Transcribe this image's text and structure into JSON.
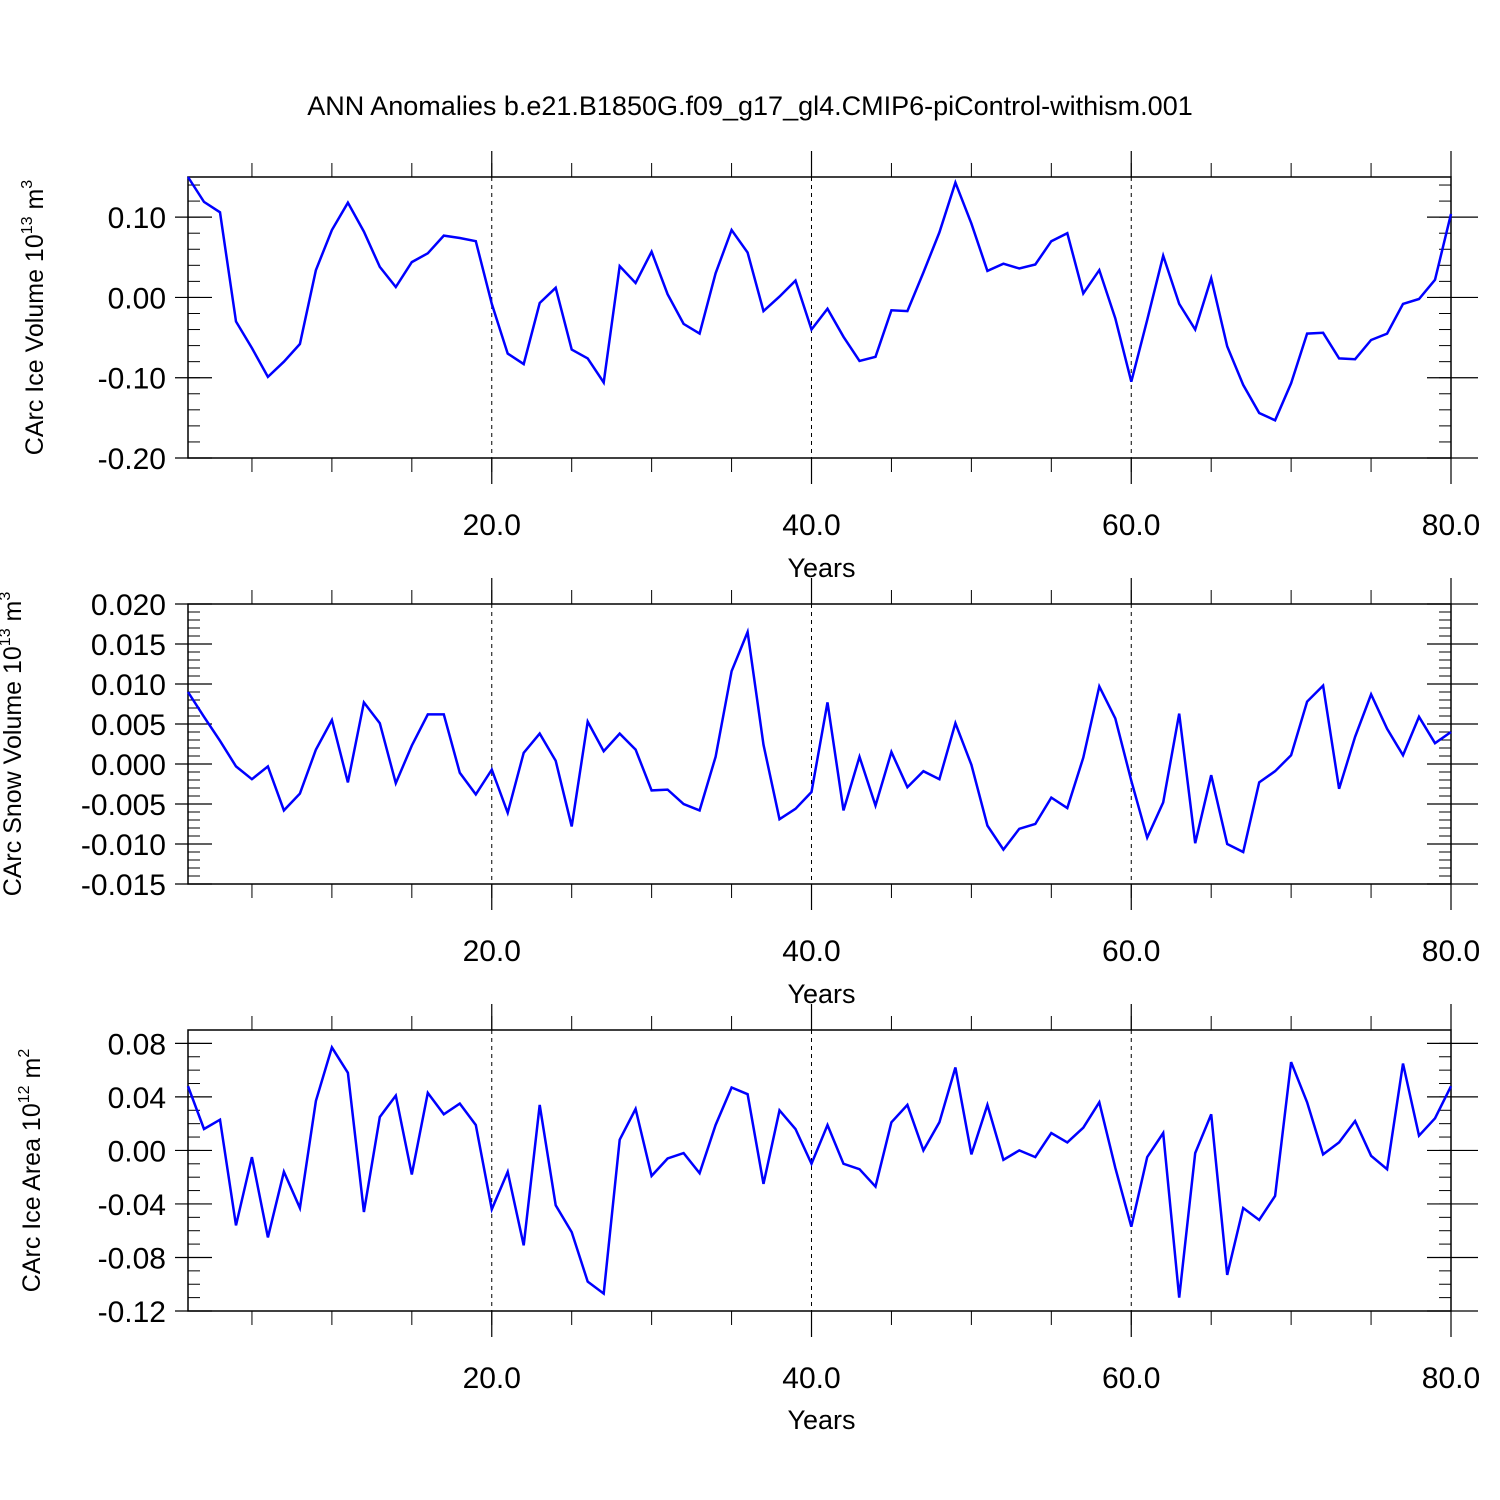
{
  "title": "ANN Anomalies b.e21.B1850G.f09_g17_gl4.CMIP6-piControl-withism.001",
  "colors": {
    "line": "#0000ff",
    "axes": "#000000",
    "grid": "#000000"
  },
  "chart_data": [
    {
      "type": "line",
      "ylabel": "CArc Ice Volume 10",
      "ylabel_exp": "13",
      "ylabel_unit": "m",
      "ylabel_unit_exp": "3",
      "xlabel": "Years",
      "xlim": [
        1,
        80
      ],
      "ylim": [
        -0.2,
        0.15
      ],
      "xticks": [
        20,
        40,
        60,
        80
      ],
      "xtick_labels": [
        "20.0",
        "40.0",
        "60.0",
        "80.0"
      ],
      "yticks": [
        -0.2,
        -0.1,
        0.0,
        0.1
      ],
      "ytick_labels": [
        "-0.20",
        "-0.10",
        "0.00",
        "0.10"
      ],
      "y_minor_step": 0.02,
      "x_minor_step": 5,
      "grid": "dashed vertical at x major ticks",
      "x": [
        1,
        2,
        3,
        4,
        5,
        6,
        7,
        8,
        9,
        10,
        11,
        12,
        13,
        14,
        15,
        16,
        17,
        18,
        19,
        20,
        21,
        22,
        23,
        24,
        25,
        26,
        27,
        28,
        29,
        30,
        31,
        32,
        33,
        34,
        35,
        36,
        37,
        38,
        39,
        40,
        41,
        42,
        43,
        44,
        45,
        46,
        47,
        48,
        49,
        50,
        51,
        52,
        53,
        54,
        55,
        56,
        57,
        58,
        59,
        60,
        61,
        62,
        63,
        64,
        65,
        66,
        67,
        68,
        69,
        70,
        71,
        72,
        73,
        74,
        75,
        76,
        77,
        78,
        79,
        80
      ],
      "values": [
        0.15,
        0.119,
        0.106,
        -0.03,
        -0.063,
        -0.099,
        -0.08,
        -0.058,
        0.034,
        0.084,
        0.118,
        0.082,
        0.038,
        0.013,
        0.044,
        0.055,
        0.077,
        0.074,
        0.07,
        -0.008,
        -0.07,
        -0.083,
        -0.007,
        0.012,
        -0.065,
        -0.076,
        -0.106,
        0.039,
        0.018,
        0.057,
        0.004,
        -0.033,
        -0.045,
        0.03,
        0.084,
        0.056,
        -0.017,
        0.001,
        0.021,
        -0.04,
        -0.014,
        -0.049,
        -0.079,
        -0.074,
        -0.016,
        -0.017,
        0.031,
        0.081,
        0.143,
        0.092,
        0.033,
        0.042,
        0.036,
        0.041,
        0.07,
        0.08,
        0.005,
        0.034,
        -0.026,
        -0.105,
        -0.028,
        0.052,
        -0.008,
        -0.04,
        0.024,
        -0.061,
        -0.109,
        -0.144,
        -0.153,
        -0.107,
        -0.045,
        -0.044,
        -0.076,
        -0.077,
        -0.053,
        -0.045,
        -0.008,
        -0.002,
        0.022,
        0.104
      ]
    },
    {
      "type": "line",
      "ylabel": "CArc Snow Volume 10",
      "ylabel_exp": "13",
      "ylabel_unit": "m",
      "ylabel_unit_exp": "3",
      "xlabel": "Years",
      "xlim": [
        1,
        80
      ],
      "ylim": [
        -0.015,
        0.02
      ],
      "xticks": [
        20,
        40,
        60,
        80
      ],
      "xtick_labels": [
        "20.0",
        "40.0",
        "60.0",
        "80.0"
      ],
      "yticks": [
        -0.015,
        -0.01,
        -0.005,
        0.0,
        0.005,
        0.01,
        0.015,
        0.02
      ],
      "ytick_labels": [
        "-0.015",
        "-0.010",
        "-0.005",
        "0.000",
        "0.005",
        "0.010",
        "0.015",
        "0.020"
      ],
      "y_minor_step": 0.001,
      "x_minor_step": 5,
      "grid": "dashed vertical at x major ticks",
      "x": [
        1,
        2,
        3,
        4,
        5,
        6,
        7,
        8,
        9,
        10,
        11,
        12,
        13,
        14,
        15,
        16,
        17,
        18,
        19,
        20,
        21,
        22,
        23,
        24,
        25,
        26,
        27,
        28,
        29,
        30,
        31,
        32,
        33,
        34,
        35,
        36,
        37,
        38,
        39,
        40,
        41,
        42,
        43,
        44,
        45,
        46,
        47,
        48,
        49,
        50,
        51,
        52,
        53,
        54,
        55,
        56,
        57,
        58,
        59,
        60,
        61,
        62,
        63,
        64,
        65,
        66,
        67,
        68,
        69,
        70,
        71,
        72,
        73,
        74,
        75,
        76,
        77,
        78,
        79,
        80
      ],
      "values": [
        0.009,
        0.0059,
        0.0029,
        -0.0003,
        -0.0019,
        -0.0003,
        -0.0058,
        -0.0037,
        0.0018,
        0.0055,
        -0.0023,
        0.0077,
        0.0051,
        -0.0024,
        0.0023,
        0.0062,
        0.0062,
        -0.0011,
        -0.0038,
        -0.0007,
        -0.0061,
        0.0014,
        0.0038,
        0.0004,
        -0.0078,
        0.0053,
        0.0016,
        0.0038,
        0.0018,
        -0.0033,
        -0.0032,
        -0.005,
        -0.0058,
        0.0009,
        0.0116,
        0.0165,
        0.0024,
        -0.0069,
        -0.0056,
        -0.0035,
        0.0077,
        -0.0058,
        0.0009,
        -0.0052,
        0.0015,
        -0.0029,
        -0.0009,
        -0.0019,
        0.0051,
        -0.0001,
        -0.0077,
        -0.0107,
        -0.0081,
        -0.0075,
        -0.0042,
        -0.0055,
        0.0008,
        0.0097,
        0.0057,
        -0.0021,
        -0.0092,
        -0.0048,
        0.0063,
        -0.0099,
        -0.0014,
        -0.01,
        -0.011,
        -0.0023,
        -0.0009,
        0.0011,
        0.0078,
        0.0098,
        -0.0031,
        0.0034,
        0.0087,
        0.0044,
        0.0011,
        0.0059,
        0.0026,
        0.004
      ]
    },
    {
      "type": "line",
      "ylabel": "CArc Ice Area 10",
      "ylabel_exp": "12",
      "ylabel_unit": "m",
      "ylabel_unit_exp": "2",
      "xlabel": "Years",
      "xlim": [
        1,
        80
      ],
      "ylim": [
        -0.12,
        0.09
      ],
      "xticks": [
        20,
        40,
        60,
        80
      ],
      "xtick_labels": [
        "20.0",
        "40.0",
        "60.0",
        "80.0"
      ],
      "yticks": [
        -0.12,
        -0.08,
        -0.04,
        0.0,
        0.04,
        0.08
      ],
      "ytick_labels": [
        "-0.12",
        "-0.08",
        "-0.04",
        "0.00",
        "0.04",
        "0.08"
      ],
      "y_minor_step": 0.01,
      "x_minor_step": 5,
      "grid": "dashed vertical at x major ticks",
      "x": [
        1,
        2,
        3,
        4,
        5,
        6,
        7,
        8,
        9,
        10,
        11,
        12,
        13,
        14,
        15,
        16,
        17,
        18,
        19,
        20,
        21,
        22,
        23,
        24,
        25,
        26,
        27,
        28,
        29,
        30,
        31,
        32,
        33,
        34,
        35,
        36,
        37,
        38,
        39,
        40,
        41,
        42,
        43,
        44,
        45,
        46,
        47,
        48,
        49,
        50,
        51,
        52,
        53,
        54,
        55,
        56,
        57,
        58,
        59,
        60,
        61,
        62,
        63,
        64,
        65,
        66,
        67,
        68,
        69,
        70,
        71,
        72,
        73,
        74,
        75,
        76,
        77,
        78,
        79,
        80
      ],
      "values": [
        0.048,
        0.016,
        0.023,
        -0.056,
        -0.005,
        -0.065,
        -0.016,
        -0.043,
        0.037,
        0.077,
        0.058,
        -0.046,
        0.025,
        0.041,
        -0.018,
        0.043,
        0.027,
        0.035,
        0.019,
        -0.044,
        -0.016,
        -0.071,
        0.034,
        -0.041,
        -0.061,
        -0.098,
        -0.107,
        0.008,
        0.031,
        -0.019,
        -0.006,
        -0.002,
        -0.017,
        0.019,
        0.047,
        0.042,
        -0.025,
        0.03,
        0.016,
        -0.01,
        0.019,
        -0.01,
        -0.014,
        -0.027,
        0.021,
        0.034,
        0.0,
        0.021,
        0.062,
        -0.003,
        0.034,
        -0.007,
        0.0,
        -0.005,
        0.013,
        0.006,
        0.017,
        0.036,
        -0.013,
        -0.057,
        -0.005,
        0.013,
        -0.11,
        -0.002,
        0.027,
        -0.093,
        -0.043,
        -0.052,
        -0.034,
        0.066,
        0.036,
        -0.003,
        0.006,
        0.022,
        -0.004,
        -0.014,
        0.065,
        0.011,
        0.024,
        0.048
      ]
    }
  ]
}
